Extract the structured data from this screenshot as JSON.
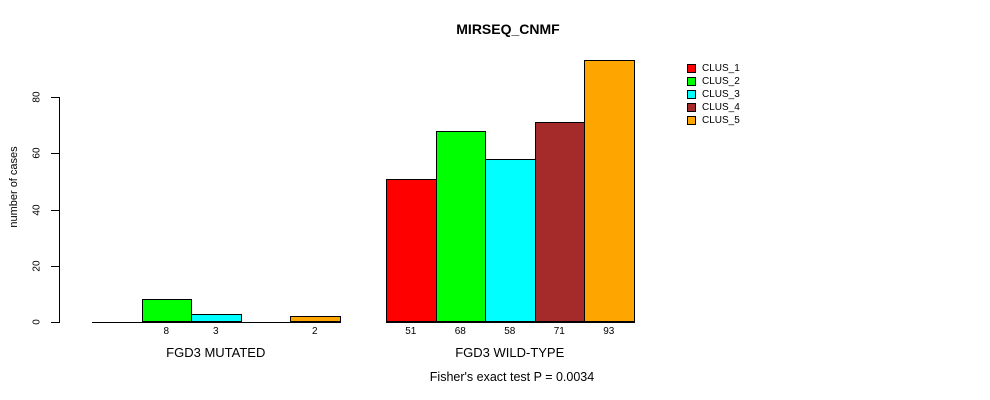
{
  "chart_data": {
    "type": "bar",
    "title": "MIRSEQ_CNMF",
    "ylabel": "number of cases",
    "xlabel": "",
    "ylim": [
      0,
      93
    ],
    "yticks": [
      0,
      20,
      40,
      60,
      80
    ],
    "grid": false,
    "categories": [
      "FGD3 MUTATED",
      "FGD3 WILD-TYPE"
    ],
    "series": [
      {
        "name": "CLUS_1",
        "color": "#FF0000",
        "values": [
          0,
          51
        ]
      },
      {
        "name": "CLUS_2",
        "color": "#00FF00",
        "values": [
          8,
          68
        ]
      },
      {
        "name": "CLUS_3",
        "color": "#00FFFF",
        "values": [
          3,
          58
        ]
      },
      {
        "name": "CLUS_4",
        "color": "#A52A2A",
        "values": [
          0,
          71
        ]
      },
      {
        "name": "CLUS_5",
        "color": "#FFA500",
        "values": [
          2,
          93
        ]
      }
    ],
    "value_label_rule": "bar values printed below baseline for nonzero bars only",
    "legend": {
      "position": "right",
      "entries": [
        {
          "label": "CLUS_1",
          "color": "#FF0000"
        },
        {
          "label": "CLUS_2",
          "color": "#00FF00"
        },
        {
          "label": "CLUS_3",
          "color": "#00FFFF"
        },
        {
          "label": "CLUS_4",
          "color": "#A52A2A"
        },
        {
          "label": "CLUS_5",
          "color": "#FFA500"
        }
      ]
    },
    "annotation": "Fisher's exact test P = 0.0034"
  }
}
